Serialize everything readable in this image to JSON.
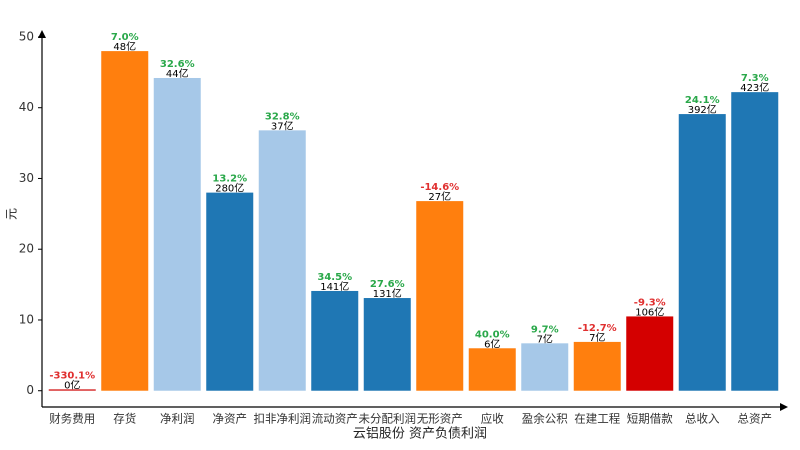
{
  "chart_data": {
    "type": "bar",
    "title": "云铝股份 资产负债利润",
    "y_label": "元",
    "categories": [
      "财务费用",
      "存货",
      "净利润",
      "净资产",
      "扣非净利润",
      "流动资产",
      "未分配利润",
      "无形资产",
      "应收",
      "盈余公积",
      "在建工程",
      "短期借款",
      "总收入",
      "总资产"
    ],
    "values": [
      0.2,
      48,
      44.2,
      28,
      36.8,
      14.1,
      13.1,
      26.8,
      6,
      6.7,
      6.9,
      10.5,
      39.1,
      42.2
    ],
    "colors": [
      "#d62728",
      "#ff7f0e",
      "#a6c8e8",
      "#1f77b4",
      "#a6c8e8",
      "#1f77b4",
      "#1f77b4",
      "#ff7f0e",
      "#ff7f0e",
      "#a6c8e8",
      "#ff7f0e",
      "#d40000",
      "#1f77b4",
      "#1f77b4"
    ],
    "change_labels": [
      "-330.1%",
      "7.0%",
      "32.6%",
      "13.2%",
      "32.8%",
      "34.5%",
      "27.6%",
      "-14.6%",
      "40.0%",
      "9.7%",
      "-12.7%",
      "-9.3%",
      "24.1%",
      "7.3%"
    ],
    "change_label_colors": [
      "#e03030",
      "#2aa84a",
      "#2aa84a",
      "#2aa84a",
      "#2aa84a",
      "#2aa84a",
      "#2aa84a",
      "#e03030",
      "#2aa84a",
      "#2aa84a",
      "#e03030",
      "#e03030",
      "#2aa84a",
      "#2aa84a"
    ],
    "amount_labels": [
      "0亿",
      "48亿",
      "44亿",
      "280亿",
      "37亿",
      "141亿",
      "131亿",
      "27亿",
      "6亿",
      "7亿",
      "7亿",
      "106亿",
      "392亿",
      "423亿"
    ],
    "ylim": [
      -2.3,
      50.7
    ],
    "yticks": [
      0,
      10,
      20,
      30,
      40,
      50
    ]
  }
}
